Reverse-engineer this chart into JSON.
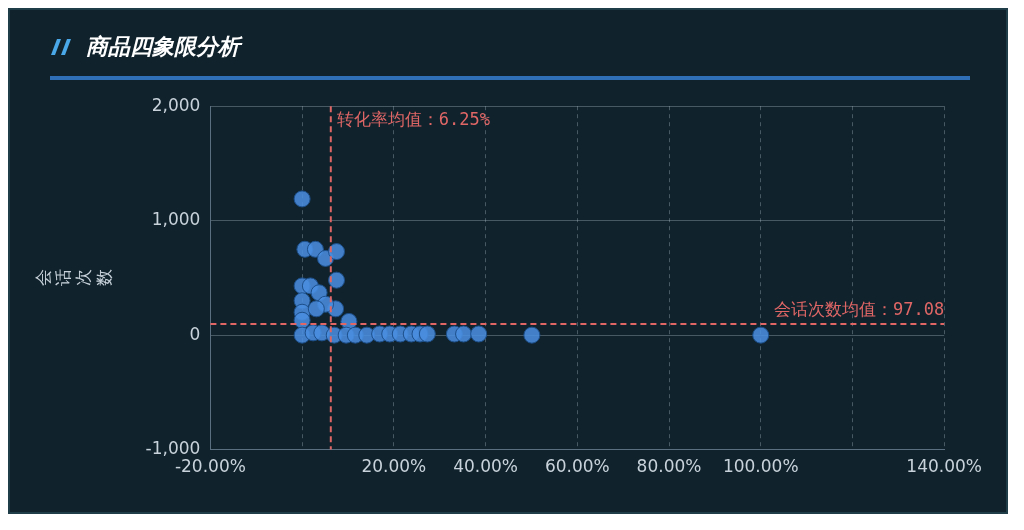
{
  "chart_data": {
    "type": "scatter",
    "title": "商品四象限分析",
    "ylabel": "会话次数",
    "x": [
      0,
      0.6,
      2.9,
      5.1,
      7.5,
      7.5,
      0,
      1.8,
      3.7,
      0,
      0,
      0,
      7.3,
      5.1,
      3.1,
      0,
      2.4,
      4.3,
      7,
      10.2,
      9.6,
      11.6,
      14.1,
      16.9,
      19.1,
      21.4,
      23.8,
      25.7,
      27.3,
      33.2,
      35.2,
      38.5,
      50.1,
      100
    ],
    "series": [
      {
        "color": "#4a8ee0",
        "values": [
          1190,
          750,
          750,
          670,
          730,
          480,
          430,
          430,
          370,
          300,
          200,
          130,
          230,
          270,
          230,
          0,
          20,
          20,
          0,
          120,
          0,
          0,
          0,
          10,
          10,
          10,
          10,
          10,
          10,
          10,
          10,
          10,
          0,
          0
        ]
      }
    ],
    "xlim": [
      -20,
      140
    ],
    "xticks": [
      {
        "value": -20,
        "label": "-20.00%"
      },
      {
        "value": 0,
        "label": null
      },
      {
        "value": 20,
        "label": "20.00%"
      },
      {
        "value": 40,
        "label": "40.00%"
      },
      {
        "value": 60,
        "label": "60.00%"
      },
      {
        "value": 80,
        "label": "80.00%"
      },
      {
        "value": 100,
        "label": "100.00%"
      },
      {
        "value": 120,
        "label": null
      },
      {
        "value": 140,
        "label": "140.00%"
      }
    ],
    "ylim": [
      -1000,
      2000
    ],
    "yticks": [
      {
        "value": -1000,
        "label": "-1,000"
      },
      {
        "value": 0,
        "label": "0"
      },
      {
        "value": 1000,
        "label": "1,000"
      },
      {
        "value": 2000,
        "label": "2,000"
      }
    ],
    "ref_lines": [
      {
        "axis": "x",
        "value": 6.25,
        "label": "转化率均值：6.25%",
        "color": "#e06666",
        "line_style": "dashed"
      },
      {
        "axis": "y",
        "value": 97.08,
        "label": "会话次数均值：97.08",
        "color": "#e06666",
        "line_style": "dashed"
      }
    ],
    "grid": true,
    "marker": "circle"
  }
}
